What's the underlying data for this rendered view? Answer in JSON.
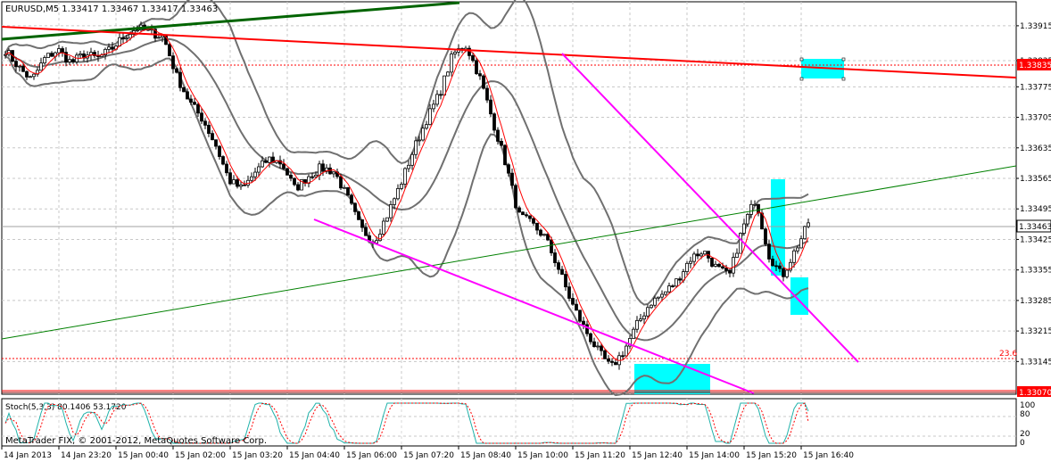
{
  "header": {
    "symbol_info": "EURUSD,M5  1.33417 1.33467 1.33417 1.33463"
  },
  "price_labels": {
    "current": "1.33463",
    "resistance": "1.33835",
    "bottom": "1.33070",
    "fib_text": "23.6"
  },
  "stoch": {
    "label": "Stoch(5,3,3) 80.1406 53.1720",
    "levels": [
      "100",
      "80",
      "20",
      "0"
    ]
  },
  "copyright": "MetaTrader FIX, © 2001-2012, MetaQuotes Software Corp.",
  "colors": {
    "background": "#ffffff",
    "frame": "#000000",
    "grid": "#b8b8b8",
    "candle": "#000000",
    "bollinger": "#707070",
    "ma": "#ff0000",
    "red_trend": "#ff0000",
    "dark_green_trend": "#006400",
    "green_channel": "#008000",
    "magenta_channel": "#ff00ff",
    "cyan_box": "#00ffff",
    "stoch_main": "#20b2aa",
    "stoch_signal": "#ff0000",
    "dotted_red": "#ff0000"
  },
  "chart_data": {
    "type": "candlestick",
    "symbol": "EURUSD",
    "timeframe": "M5",
    "y_ticks": [
      "1.33915",
      "1.33835",
      "1.33775",
      "1.33705",
      "1.33635",
      "1.33565",
      "1.33495",
      "1.33463",
      "1.33425",
      "1.33355",
      "1.33285",
      "1.33215",
      "1.33145",
      "1.33070"
    ],
    "ylim": [
      1.3307,
      1.3397
    ],
    "x_tick_labels": [
      "14 Jan 2013",
      "14 Jan 23:20",
      "15 Jan 00:40",
      "15 Jan 02:00",
      "15 Jan 03:20",
      "15 Jan 04:40",
      "15 Jan 06:00",
      "15 Jan 07:20",
      "15 Jan 08:40",
      "15 Jan 10:00",
      "15 Jan 11:20",
      "15 Jan 12:40",
      "15 Jan 14:00",
      "15 Jan 15:20",
      "15 Jan 16:40"
    ],
    "last_ohlc": {
      "open": 1.33417,
      "high": 1.33467,
      "low": 1.33417,
      "close": 1.33463
    },
    "stochastic": {
      "k_period": 5,
      "d_period": 3,
      "slowing": 3,
      "main": 80.1406,
      "signal": 53.172,
      "levels": [
        0,
        20,
        80,
        100
      ]
    },
    "horizontal_levels": [
      {
        "price": 1.33835,
        "style": "dotted",
        "color": "#ff0000"
      },
      {
        "price": 1.33463,
        "style": "solid",
        "color": "#a0a0a0"
      },
      {
        "price": 1.33145,
        "style": "dotted",
        "color": "#ff0000",
        "label": "23.6"
      }
    ],
    "price_path": [
      1.3386,
      1.3382,
      1.3379,
      1.3384,
      1.3386,
      1.3383,
      1.3385,
      1.3384,
      1.3386,
      1.3389,
      1.3391,
      1.339,
      1.3389,
      1.338,
      1.3374,
      1.337,
      1.3364,
      1.3356,
      1.3354,
      1.3358,
      1.3361,
      1.336,
      1.3354,
      1.3357,
      1.3359,
      1.3358,
      1.3352,
      1.3345,
      1.3342,
      1.3348,
      1.3355,
      1.3363,
      1.337,
      1.3376,
      1.3385,
      1.3387,
      1.338,
      1.337,
      1.336,
      1.3348,
      1.3346,
      1.3343,
      1.3336,
      1.3328,
      1.3322,
      1.3317,
      1.3313,
      1.3317,
      1.3323,
      1.3328,
      1.333,
      1.3333,
      1.3338,
      1.334,
      1.3336,
      1.3334,
      1.3345,
      1.3352,
      1.3339,
      1.3334,
      1.334,
      1.3346
    ]
  }
}
